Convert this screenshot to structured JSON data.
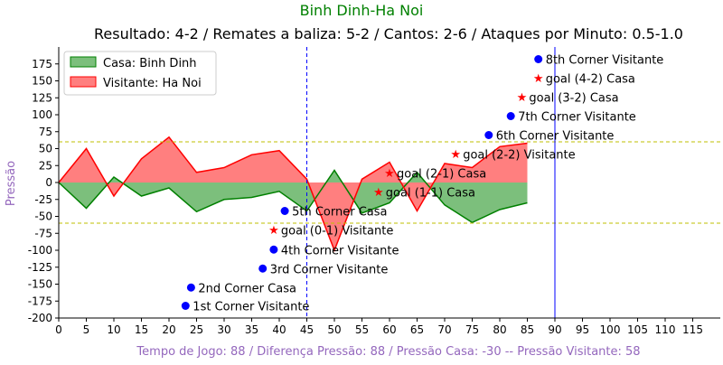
{
  "chart_data": {
    "type": "area",
    "title": "Binh Dinh-Ha Noi",
    "subtitle": "Resultado: 4-2 / Remates a baliza: 5-2 / Cantos: 2-6 / Ataques por Minuto: 0.5-1.0",
    "xlabel": "Tempo de Jogo: 88 / Diferença Pressão: 88 / Pressão Casa: -30 -- Pressão Visitante: 58",
    "ylabel": "Pressão",
    "xlim": [
      0,
      120
    ],
    "ylim": [
      -200,
      200
    ],
    "x_ticks": [
      0,
      5,
      10,
      15,
      20,
      25,
      30,
      35,
      40,
      45,
      50,
      55,
      60,
      65,
      70,
      75,
      80,
      85,
      90,
      95,
      100,
      105,
      110,
      115
    ],
    "y_ticks": [
      -200,
      -175,
      -150,
      -125,
      -100,
      -75,
      -50,
      -25,
      0,
      25,
      50,
      75,
      100,
      125,
      150,
      175
    ],
    "grid": false,
    "legend_position": "top-left",
    "colors": {
      "title": "#008000",
      "axis_label": "#9467bd",
      "home_fill": "#7cbf7c",
      "home_line": "#008000",
      "away_fill": "#ff7f7f",
      "away_line": "#ff0000",
      "threshold_line": "#bfbf00",
      "halftime_line": "#0000ff",
      "marker": "#0000ff",
      "goal_marker": "#ff0000"
    },
    "thresholds": [
      60,
      -60
    ],
    "vertical_lines": [
      {
        "x": 45,
        "style": "dashed"
      },
      {
        "x": 90,
        "style": "solid"
      }
    ],
    "series": [
      {
        "name": "Casa: Binh Dinh",
        "x": [
          0,
          5,
          10,
          15,
          20,
          25,
          30,
          35,
          40,
          45,
          50,
          55,
          60,
          65,
          70,
          75,
          80,
          85
        ],
        "values": [
          0,
          -38,
          8,
          -20,
          -8,
          -43,
          -25,
          -22,
          -13,
          -42,
          18,
          -45,
          -30,
          15,
          -33,
          -59,
          -40,
          -30
        ]
      },
      {
        "name": "Visitante: Ha Noi",
        "x": [
          0,
          5,
          10,
          15,
          20,
          25,
          30,
          35,
          40,
          45,
          50,
          55,
          60,
          65,
          70,
          75,
          80,
          85
        ],
        "values": [
          0,
          50,
          -20,
          35,
          67,
          15,
          22,
          41,
          47,
          5,
          -100,
          5,
          30,
          -42,
          28,
          22,
          53,
          58
        ]
      }
    ],
    "events": [
      {
        "x": 23,
        "y": -182,
        "kind": "corner",
        "label": "1st Corner Visitante"
      },
      {
        "x": 24,
        "y": -155,
        "kind": "corner",
        "label": "2nd Corner Casa"
      },
      {
        "x": 37,
        "y": -127,
        "kind": "corner",
        "label": "3rd Corner Visitante"
      },
      {
        "x": 39,
        "y": -99,
        "kind": "corner",
        "label": "4th Corner Visitante"
      },
      {
        "x": 39,
        "y": -70,
        "kind": "goal",
        "label": "goal (0-1) Visitante"
      },
      {
        "x": 41,
        "y": -42,
        "kind": "corner",
        "label": "5th Corner Casa"
      },
      {
        "x": 58,
        "y": -14,
        "kind": "goal",
        "label": "goal (1-1) Casa"
      },
      {
        "x": 60,
        "y": 14,
        "kind": "goal",
        "label": "goal (2-1) Casa"
      },
      {
        "x": 72,
        "y": 42,
        "kind": "goal",
        "label": "goal (2-2) Visitante"
      },
      {
        "x": 78,
        "y": 70,
        "kind": "corner",
        "label": "6th Corner Visitante"
      },
      {
        "x": 82,
        "y": 98,
        "kind": "corner",
        "label": "7th Corner Visitante"
      },
      {
        "x": 84,
        "y": 126,
        "kind": "goal",
        "label": "goal (3-2) Casa"
      },
      {
        "x": 87,
        "y": 154,
        "kind": "goal",
        "label": "goal (4-2) Casa"
      },
      {
        "x": 87,
        "y": 182,
        "kind": "corner",
        "label": "8th Corner Visitante"
      }
    ]
  }
}
